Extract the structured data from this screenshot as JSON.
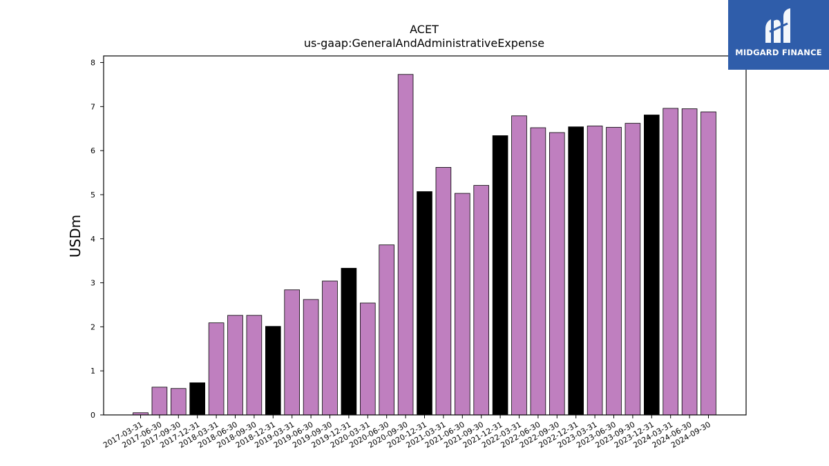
{
  "chart_data": {
    "type": "bar",
    "title": "ACET",
    "subtitle": "us-gaap:GeneralAndAdministrativeExpense",
    "xlabel": "",
    "ylabel": "USDm",
    "ylim": [
      0,
      8.15
    ],
    "yticks": [
      "0",
      "1",
      "2",
      "3",
      "4",
      "5",
      "6",
      "7",
      "8"
    ],
    "grid": false,
    "colors": {
      "quarter": "#bf7fbf",
      "year_end": "#000000",
      "edge": "#000000"
    },
    "categories": [
      "2017-03-31",
      "2017-06-30",
      "2017-09-30",
      "2017-12-31",
      "2018-03-31",
      "2018-06-30",
      "2018-09-30",
      "2018-12-31",
      "2019-03-31",
      "2019-06-30",
      "2019-09-30",
      "2019-12-31",
      "2020-03-31",
      "2020-06-30",
      "2020-09-30",
      "2020-12-31",
      "2021-03-31",
      "2021-06-30",
      "2021-09-30",
      "2021-12-31",
      "2022-03-31",
      "2022-06-30",
      "2022-09-30",
      "2022-12-31",
      "2023-03-31",
      "2023-06-30",
      "2023-09-30",
      "2023-12-31",
      "2024-03-31",
      "2024-06-30",
      "2024-09-30"
    ],
    "values": [
      0.05,
      0.63,
      0.6,
      0.73,
      2.09,
      2.26,
      2.26,
      2.01,
      2.84,
      2.62,
      3.04,
      3.33,
      2.54,
      3.86,
      7.73,
      5.07,
      5.62,
      5.03,
      5.21,
      6.34,
      6.79,
      6.52,
      6.41,
      6.54,
      6.56,
      6.53,
      6.62,
      6.81,
      6.96,
      6.95,
      6.88
    ],
    "year_end": [
      false,
      false,
      false,
      true,
      false,
      false,
      false,
      true,
      false,
      false,
      false,
      true,
      false,
      false,
      false,
      true,
      false,
      false,
      false,
      true,
      false,
      false,
      false,
      true,
      false,
      false,
      false,
      true,
      false,
      false,
      false
    ]
  },
  "logo": {
    "text": "MIDGARD FINANCE",
    "icon": "midgard-logo-icon",
    "background": "#2f5daa"
  }
}
